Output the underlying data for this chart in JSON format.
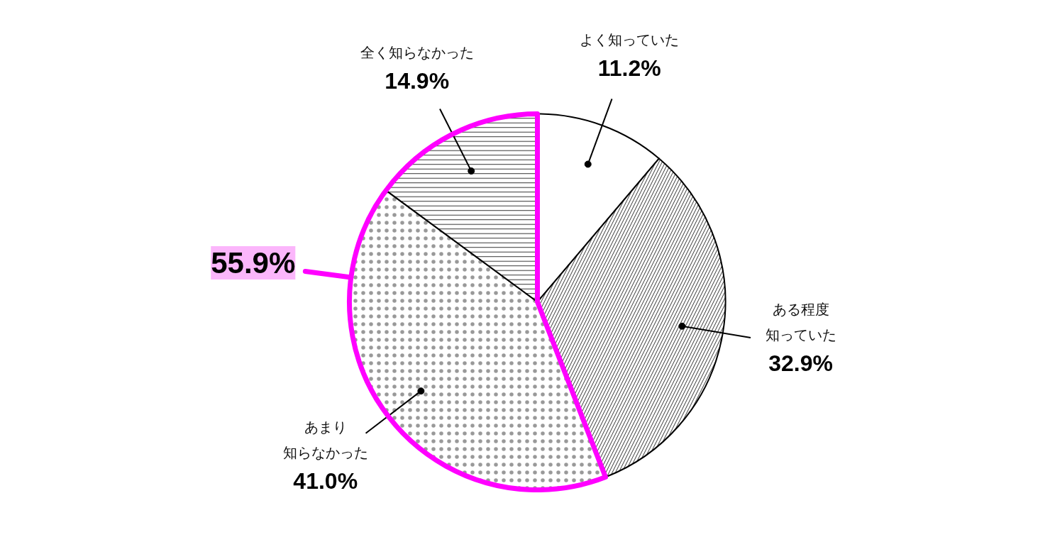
{
  "chart_data": {
    "type": "pie",
    "categories": [
      "よく知っていた",
      "ある程度知っていた",
      "あまり知らなかった",
      "全く知らなかった"
    ],
    "values": [
      11.2,
      32.9,
      41.0,
      14.9
    ],
    "colors": [
      "#ffffff",
      "#ffffff",
      "#ffffff",
      "#ffffff"
    ],
    "value_labels": [
      "11.2%",
      "32.9%",
      "41.0%",
      "14.9%"
    ],
    "annotations": [
      "55.9%"
    ]
  }
}
